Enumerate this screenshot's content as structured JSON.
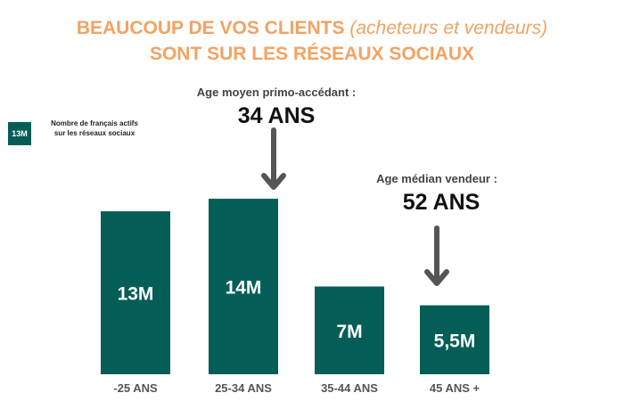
{
  "header": {
    "title_line1_main": "BEAUCOUP DE VOS CLIENTS",
    "title_line1_sub": "(acheteurs et vendeurs)",
    "title_line2": "SONT SUR LES RÉSEAUX SOCIAUX"
  },
  "legend": {
    "swatch_label": "13M",
    "text": "Nombre de français actifs sur les réseaux sociaux"
  },
  "annotations": {
    "first_buyer_label": "Age moyen primo-accédant :",
    "first_buyer_value": "34 ANS",
    "seller_label": "Age médian vendeur :",
    "seller_value": "52 ANS"
  },
  "colors": {
    "title": "#F4A261",
    "bar": "#045E57",
    "arrow": "#555555",
    "axis_text": "#555555"
  },
  "chart_data": {
    "type": "bar",
    "categories": [
      "-25 ANS",
      "25-34 ANS",
      "35-44 ANS",
      "45 ANS +"
    ],
    "values": [
      13,
      14,
      7,
      5.5
    ],
    "value_labels": [
      "13M",
      "14M",
      "7M",
      "5,5M"
    ],
    "ylim": [
      0,
      14.5
    ],
    "grid": false
  }
}
